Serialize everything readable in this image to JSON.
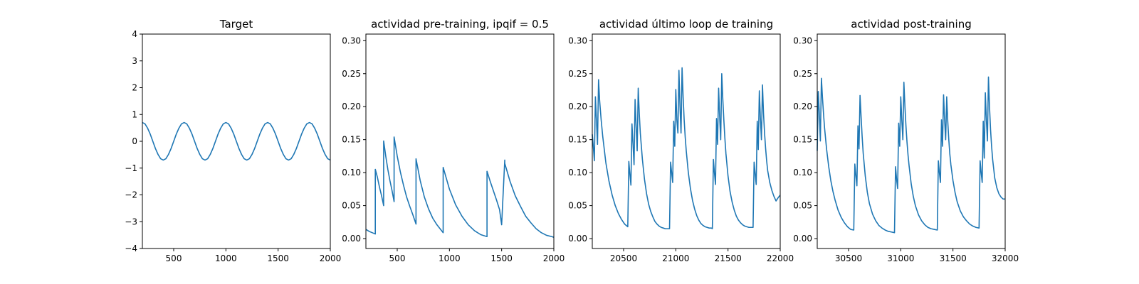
{
  "chart_data": [
    {
      "type": "line",
      "title": "Target",
      "xlabel": "",
      "ylabel": "",
      "xlim": [
        200,
        2000
      ],
      "ylim": [
        -4,
        4
      ],
      "xticks": [
        500,
        1000,
        1500,
        2000
      ],
      "yticks": [
        -4,
        -3,
        -2,
        -1,
        0,
        1,
        2,
        3,
        4
      ],
      "grid": false,
      "series": [
        {
          "x": [
            200,
            225,
            250,
            275,
            300,
            325,
            350,
            375,
            400,
            425,
            450,
            475,
            500,
            525,
            550,
            575,
            600,
            625,
            650,
            675,
            700,
            725,
            750,
            775,
            800,
            825,
            850,
            875,
            900,
            925,
            950,
            975,
            1000,
            1025,
            1050,
            1075,
            1100,
            1125,
            1150,
            1175,
            1200,
            1225,
            1250,
            1275,
            1300,
            1325,
            1350,
            1375,
            1400,
            1425,
            1450,
            1475,
            1500,
            1525,
            1550,
            1575,
            1600,
            1625,
            1650,
            1675,
            1700,
            1725,
            1750,
            1775,
            1800,
            1825,
            1850,
            1875,
            1900,
            1925,
            1950,
            1975,
            2000
          ],
          "y": [
            0.7,
            0.65,
            0.49,
            0.27,
            0.0,
            -0.27,
            -0.49,
            -0.65,
            -0.7,
            -0.65,
            -0.49,
            -0.27,
            0.0,
            0.27,
            0.49,
            0.65,
            0.7,
            0.65,
            0.49,
            0.27,
            0.0,
            -0.27,
            -0.49,
            -0.65,
            -0.7,
            -0.65,
            -0.49,
            -0.27,
            0.0,
            0.27,
            0.49,
            0.65,
            0.7,
            0.65,
            0.49,
            0.27,
            0.0,
            -0.27,
            -0.49,
            -0.65,
            -0.7,
            -0.65,
            -0.49,
            -0.27,
            0.0,
            0.27,
            0.49,
            0.65,
            0.7,
            0.65,
            0.49,
            0.27,
            0.0,
            -0.27,
            -0.49,
            -0.65,
            -0.7,
            -0.65,
            -0.49,
            -0.27,
            0.0,
            0.27,
            0.49,
            0.65,
            0.7,
            0.65,
            0.49,
            0.27,
            0.0,
            -0.27,
            -0.49,
            -0.65,
            -0.7
          ]
        }
      ]
    },
    {
      "type": "line",
      "title": "actividad pre-training, ipqif = 0.5",
      "xlabel": "",
      "ylabel": "",
      "xlim": [
        200,
        2000
      ],
      "ylim": [
        -0.015,
        0.31
      ],
      "xticks": [
        500,
        1000,
        1500,
        2000
      ],
      "yticks": [
        0.0,
        0.05,
        0.1,
        0.15,
        0.2,
        0.25,
        0.3
      ],
      "grid": false,
      "series": [
        {
          "x": [
            200,
            230,
            260,
            290,
            290,
            310,
            330,
            350,
            370,
            370,
            390,
            410,
            430,
            450,
            470,
            470,
            500,
            530,
            560,
            590,
            620,
            650,
            680,
            680,
            720,
            760,
            800,
            840,
            880,
            920,
            940,
            940,
            1000,
            1060,
            1120,
            1180,
            1240,
            1300,
            1360,
            1360,
            1390,
            1420,
            1450,
            1480,
            1500,
            1530,
            1530,
            1580,
            1630,
            1680,
            1730,
            1780,
            1830,
            1880,
            1930,
            1980,
            2000
          ],
          "y": [
            0.014,
            0.011,
            0.009,
            0.007,
            0.105,
            0.093,
            0.078,
            0.065,
            0.05,
            0.148,
            0.125,
            0.105,
            0.088,
            0.073,
            0.056,
            0.154,
            0.125,
            0.101,
            0.081,
            0.063,
            0.049,
            0.036,
            0.022,
            0.121,
            0.088,
            0.063,
            0.045,
            0.031,
            0.021,
            0.013,
            0.009,
            0.108,
            0.075,
            0.051,
            0.034,
            0.021,
            0.012,
            0.006,
            0.003,
            0.102,
            0.087,
            0.073,
            0.059,
            0.044,
            0.021,
            0.119,
            0.114,
            0.087,
            0.065,
            0.049,
            0.034,
            0.024,
            0.015,
            0.009,
            0.005,
            0.003,
            0.002
          ]
        }
      ]
    },
    {
      "type": "line",
      "title": "actividad último loop de training",
      "xlabel": "",
      "ylabel": "",
      "xlim": [
        20200,
        22000
      ],
      "ylim": [
        -0.015,
        0.31
      ],
      "xticks": [
        20500,
        21000,
        21500,
        22000
      ],
      "yticks": [
        0.0,
        0.05,
        0.1,
        0.15,
        0.2,
        0.25,
        0.3
      ],
      "grid": false,
      "series": [
        {
          "x": [
            20200,
            20210,
            20220,
            20230,
            20250,
            20260,
            20270,
            20285,
            20300,
            20330,
            20360,
            20390,
            20420,
            20450,
            20480,
            20510,
            20540,
            20550,
            20560,
            20570,
            20580,
            20600,
            20610,
            20620,
            20630,
            20640,
            20650,
            20660,
            20680,
            20700,
            20720,
            20740,
            20760,
            20780,
            20800,
            20820,
            20840,
            20860,
            20880,
            20900,
            20920,
            20940,
            20950,
            20960,
            20970,
            20980,
            20990,
            21000,
            21010,
            21020,
            21030,
            21040,
            21050,
            21060,
            21070,
            21080,
            21090,
            21100,
            21120,
            21140,
            21160,
            21180,
            21200,
            21220,
            21240,
            21260,
            21280,
            21300,
            21320,
            21340,
            21350,
            21360,
            21370,
            21380,
            21390,
            21400,
            21410,
            21420,
            21430,
            21440,
            21450,
            21460,
            21470,
            21480,
            21500,
            21520,
            21540,
            21560,
            21580,
            21600,
            21620,
            21640,
            21660,
            21680,
            21700,
            21720,
            21740,
            21750,
            21760,
            21770,
            21780,
            21790,
            21800,
            21810,
            21820,
            21830,
            21840,
            21850,
            21860,
            21870,
            21880,
            21900,
            21920,
            21940,
            21960,
            21980,
            22000
          ],
          "y": [
            0.158,
            0.139,
            0.118,
            0.215,
            0.143,
            0.241,
            0.21,
            0.18,
            0.155,
            0.115,
            0.087,
            0.066,
            0.05,
            0.038,
            0.029,
            0.022,
            0.018,
            0.117,
            0.098,
            0.081,
            0.174,
            0.112,
            0.211,
            0.171,
            0.133,
            0.228,
            0.19,
            0.16,
            0.12,
            0.09,
            0.068,
            0.052,
            0.041,
            0.033,
            0.026,
            0.022,
            0.019,
            0.017,
            0.016,
            0.015,
            0.015,
            0.015,
            0.116,
            0.1,
            0.085,
            0.178,
            0.14,
            0.226,
            0.18,
            0.16,
            0.255,
            0.2,
            0.16,
            0.259,
            0.215,
            0.18,
            0.154,
            0.133,
            0.1,
            0.076,
            0.058,
            0.045,
            0.035,
            0.028,
            0.023,
            0.02,
            0.018,
            0.017,
            0.016,
            0.016,
            0.015,
            0.12,
            0.1,
            0.082,
            0.182,
            0.143,
            0.228,
            0.184,
            0.15,
            0.25,
            0.212,
            0.18,
            0.152,
            0.129,
            0.095,
            0.071,
            0.055,
            0.043,
            0.034,
            0.028,
            0.024,
            0.021,
            0.019,
            0.018,
            0.017,
            0.017,
            0.017,
            0.116,
            0.098,
            0.082,
            0.178,
            0.135,
            0.224,
            0.183,
            0.15,
            0.233,
            0.19,
            0.16,
            0.137,
            0.118,
            0.103,
            0.085,
            0.073,
            0.064,
            0.057,
            0.062,
            0.066
          ]
        }
      ]
    },
    {
      "type": "line",
      "title": "actividad post-training",
      "xlabel": "",
      "ylabel": "",
      "xlim": [
        30200,
        32000
      ],
      "ylim": [
        -0.015,
        0.31
      ],
      "xticks": [
        30500,
        31000,
        31500,
        32000
      ],
      "yticks": [
        0.0,
        0.05,
        0.1,
        0.15,
        0.2,
        0.25,
        0.3
      ],
      "grid": false,
      "series": [
        {
          "x": [
            30200,
            30210,
            30220,
            30230,
            30240,
            30250,
            30260,
            30270,
            30290,
            30310,
            30330,
            30350,
            30370,
            30400,
            30430,
            30460,
            30490,
            30520,
            30550,
            30560,
            30570,
            30580,
            30590,
            30600,
            30610,
            30620,
            30630,
            30640,
            30660,
            30680,
            30700,
            30730,
            30760,
            30790,
            30820,
            30850,
            30880,
            30910,
            30940,
            30950,
            30960,
            30970,
            30980,
            30990,
            31000,
            31010,
            31020,
            31030,
            31040,
            31050,
            31060,
            31070,
            31080,
            31100,
            31120,
            31140,
            31170,
            31200,
            31230,
            31260,
            31290,
            31320,
            31350,
            31360,
            31370,
            31380,
            31390,
            31400,
            31410,
            31420,
            31430,
            31440,
            31450,
            31460,
            31470,
            31480,
            31500,
            31520,
            31540,
            31570,
            31600,
            31630,
            31660,
            31690,
            31720,
            31750,
            31760,
            31770,
            31780,
            31790,
            31800,
            31810,
            31820,
            31830,
            31840,
            31850,
            31860,
            31870,
            31880,
            31900,
            31920,
            31940,
            31960,
            31980,
            32000
          ],
          "y": [
            0.133,
            0.223,
            0.19,
            0.148,
            0.243,
            0.214,
            0.19,
            0.168,
            0.135,
            0.109,
            0.088,
            0.072,
            0.059,
            0.043,
            0.032,
            0.024,
            0.018,
            0.014,
            0.013,
            0.113,
            0.096,
            0.08,
            0.171,
            0.136,
            0.217,
            0.185,
            0.155,
            0.13,
            0.095,
            0.07,
            0.053,
            0.037,
            0.027,
            0.02,
            0.016,
            0.013,
            0.011,
            0.01,
            0.009,
            0.109,
            0.09,
            0.076,
            0.175,
            0.14,
            0.215,
            0.18,
            0.15,
            0.237,
            0.2,
            0.17,
            0.146,
            0.126,
            0.11,
            0.083,
            0.064,
            0.05,
            0.036,
            0.027,
            0.021,
            0.017,
            0.015,
            0.014,
            0.013,
            0.118,
            0.1,
            0.085,
            0.18,
            0.14,
            0.218,
            0.18,
            0.15,
            0.215,
            0.178,
            0.15,
            0.128,
            0.112,
            0.088,
            0.07,
            0.056,
            0.042,
            0.033,
            0.027,
            0.022,
            0.019,
            0.017,
            0.016,
            0.118,
            0.1,
            0.085,
            0.178,
            0.122,
            0.221,
            0.18,
            0.148,
            0.245,
            0.2,
            0.165,
            0.14,
            0.12,
            0.092,
            0.077,
            0.068,
            0.063,
            0.06,
            0.06
          ]
        }
      ]
    }
  ]
}
